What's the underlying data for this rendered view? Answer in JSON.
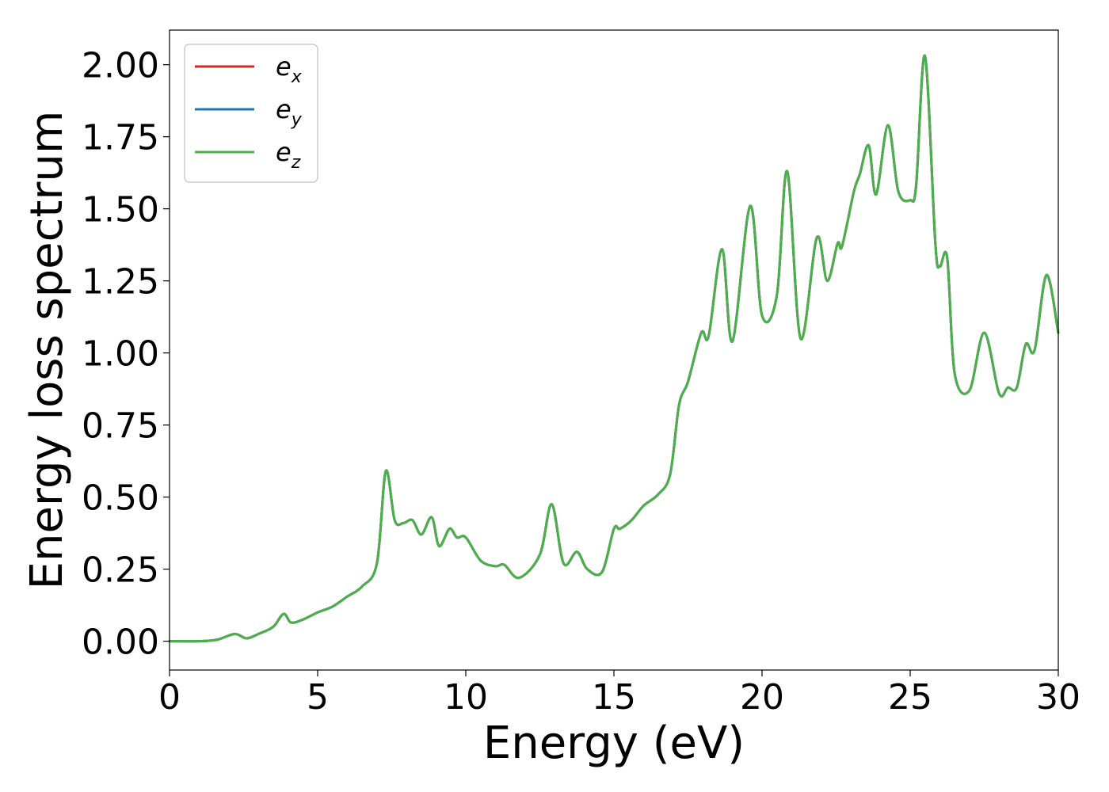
{
  "chart_data": {
    "type": "line",
    "xlabel": "Energy (eV)",
    "ylabel": "Energy loss spectrum",
    "xlim": [
      0,
      30
    ],
    "ylim": [
      -0.1,
      2.12
    ],
    "xticks": [
      "0",
      "5",
      "10",
      "15",
      "20",
      "25",
      "30"
    ],
    "yticks": [
      "0.00",
      "0.25",
      "0.50",
      "0.75",
      "1.00",
      "1.25",
      "1.50",
      "1.75",
      "2.00"
    ],
    "grid": false,
    "legend_position": "top-left",
    "series": [
      {
        "name": "e",
        "subscript": "x",
        "color": "#d62728"
      },
      {
        "name": "e",
        "subscript": "y",
        "color": "#1f77b4"
      },
      {
        "name": "e",
        "subscript": "z",
        "color": "#4daf4a"
      }
    ],
    "x": [
      0,
      1.0,
      1.6,
      2.2,
      2.6,
      3.0,
      3.5,
      3.85,
      4.1,
      4.5,
      5.0,
      5.5,
      6.0,
      6.5,
      7.0,
      7.3,
      7.6,
      7.9,
      8.2,
      8.5,
      8.85,
      9.1,
      9.45,
      9.7,
      10.0,
      10.5,
      11.0,
      11.3,
      11.8,
      12.5,
      12.9,
      13.3,
      13.75,
      14.1,
      14.6,
      15.0,
      15.2,
      15.6,
      16.0,
      16.5,
      16.9,
      17.2,
      17.5,
      17.95,
      18.2,
      18.65,
      19.0,
      19.6,
      20.0,
      20.5,
      20.85,
      21.3,
      21.85,
      22.2,
      22.55,
      22.7,
      23.1,
      23.3,
      23.6,
      23.85,
      24.25,
      24.6,
      25.0,
      25.2,
      25.5,
      25.85,
      26.0,
      26.25,
      26.5,
      27.0,
      27.5,
      28.0,
      28.3,
      28.6,
      28.9,
      29.2,
      29.6,
      30.0
    ],
    "y_common": [
      0.0,
      0.0,
      0.005,
      0.025,
      0.01,
      0.025,
      0.05,
      0.095,
      0.065,
      0.075,
      0.1,
      0.12,
      0.155,
      0.19,
      0.27,
      0.59,
      0.42,
      0.41,
      0.42,
      0.37,
      0.43,
      0.33,
      0.39,
      0.36,
      0.36,
      0.28,
      0.26,
      0.265,
      0.22,
      0.3,
      0.475,
      0.27,
      0.31,
      0.25,
      0.24,
      0.39,
      0.39,
      0.42,
      0.47,
      0.51,
      0.58,
      0.82,
      0.9,
      1.07,
      1.06,
      1.36,
      1.04,
      1.51,
      1.13,
      1.2,
      1.63,
      1.05,
      1.4,
      1.25,
      1.38,
      1.37,
      1.56,
      1.62,
      1.72,
      1.55,
      1.79,
      1.56,
      1.53,
      1.58,
      2.03,
      1.38,
      1.3,
      1.33,
      0.93,
      0.87,
      1.07,
      0.86,
      0.88,
      0.88,
      1.03,
      1.01,
      1.27,
      1.07
    ]
  }
}
